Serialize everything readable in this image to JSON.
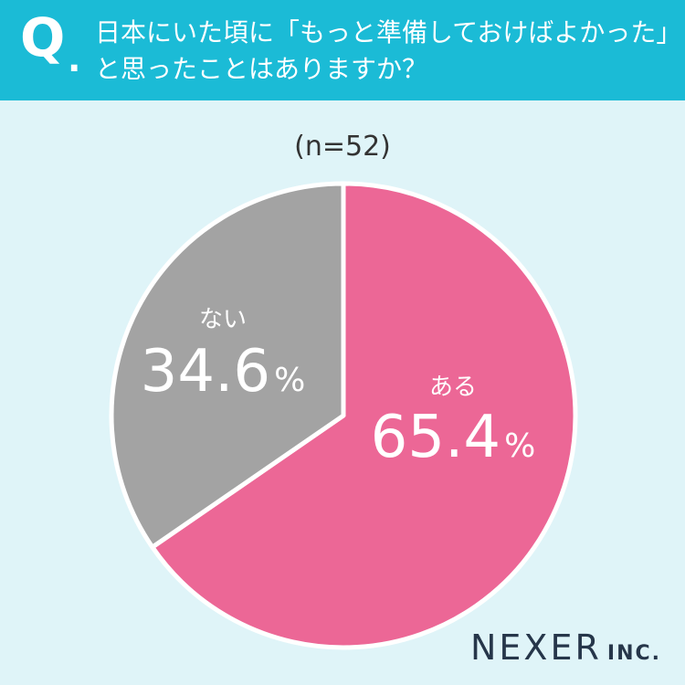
{
  "header": {
    "q_mark": "Q",
    "q_dot": ".",
    "question_line1": "日本にいた頃に「もっと準備しておけばよかった」",
    "question_line2": "と思ったことはありますか？"
  },
  "sample_size": "(n=52)",
  "brand": {
    "name": "NEXER",
    "suffix": "INC."
  },
  "colors": {
    "header_bg": "#1bbbd6",
    "background": "#dff4f8",
    "slice_yes": "#ec6796",
    "slice_no": "#a3a3a3"
  },
  "chart_data": {
    "type": "pie",
    "title": "",
    "slices": [
      {
        "label": "ある",
        "value": 65.4,
        "value_label": "65.4",
        "unit": "%",
        "color": "#ec6796"
      },
      {
        "label": "ない",
        "value": 34.6,
        "value_label": "34.6",
        "unit": "%",
        "color": "#a3a3a3"
      }
    ]
  }
}
